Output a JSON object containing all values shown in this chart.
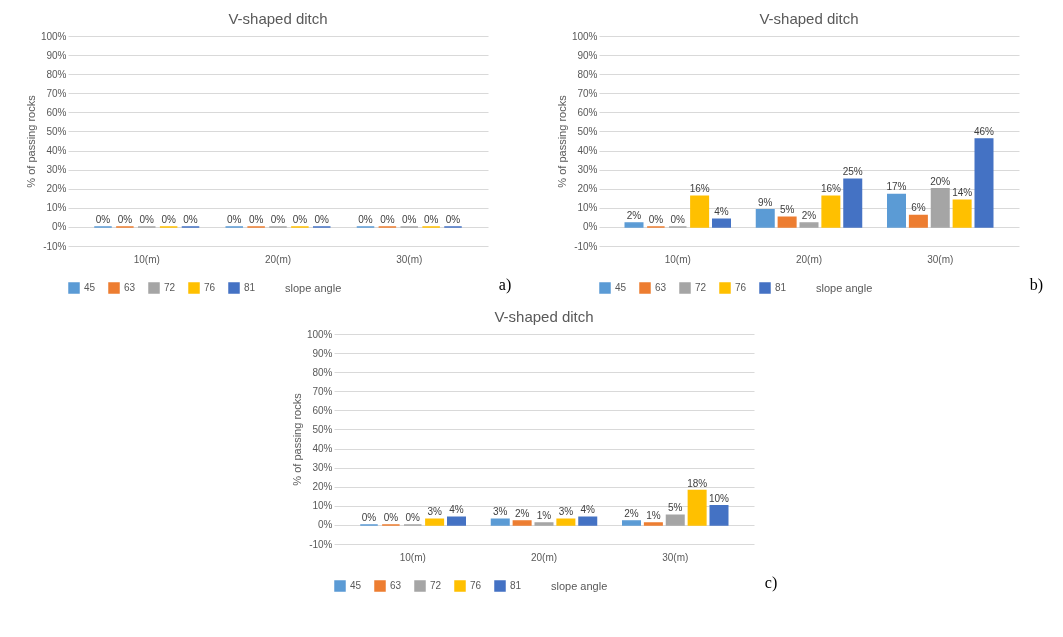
{
  "chart_data": [
    {
      "type": "bar",
      "title": "V-shaped ditch",
      "ylabel": "% of passing rocks",
      "legend_title": "slope angle",
      "legend": "bottom",
      "grid": "y",
      "categories": [
        "10(m)",
        "20(m)",
        "30(m)"
      ],
      "ylim": [
        -10,
        100
      ],
      "yticks": [
        {
          "value": -10,
          "label": "-10%"
        },
        {
          "value": 0,
          "label": "0%"
        },
        {
          "value": 10,
          "label": "10%"
        },
        {
          "value": 20,
          "label": "20%"
        },
        {
          "value": 30,
          "label": "30%"
        },
        {
          "value": 40,
          "label": "40%"
        },
        {
          "value": 50,
          "label": "50%"
        },
        {
          "value": 60,
          "label": "60%"
        },
        {
          "value": 70,
          "label": "70%"
        },
        {
          "value": 80,
          "label": "80%"
        },
        {
          "value": 90,
          "label": "90%"
        },
        {
          "value": 100,
          "label": "100%"
        }
      ],
      "annotations": [
        "a)"
      ],
      "series": [
        {
          "name": "45",
          "color": "#5b9bd5",
          "values": [
            0,
            0,
            0
          ],
          "value_labels": [
            "0%",
            "0%",
            "0%"
          ]
        },
        {
          "name": "63",
          "color": "#ed7d31",
          "values": [
            0,
            0,
            0
          ],
          "value_labels": [
            "0%",
            "0%",
            "0%"
          ]
        },
        {
          "name": "72",
          "color": "#a5a5a5",
          "values": [
            0,
            0,
            0
          ],
          "value_labels": [
            "0%",
            "0%",
            "0%"
          ]
        },
        {
          "name": "76",
          "color": "#ffc000",
          "values": [
            0,
            0,
            0
          ],
          "value_labels": [
            "0%",
            "0%",
            "0%"
          ]
        },
        {
          "name": "81",
          "color": "#4472c4",
          "values": [
            0,
            0,
            0
          ],
          "value_labels": [
            "0%",
            "0%",
            "0%"
          ]
        }
      ]
    },
    {
      "type": "bar",
      "title": "V-shaped ditch",
      "ylabel": "% of passing rocks",
      "legend_title": "slope angle",
      "legend": "bottom",
      "grid": "y",
      "categories": [
        "10(m)",
        "20(m)",
        "30(m)"
      ],
      "ylim": [
        -10,
        100
      ],
      "yticks": [
        {
          "value": -10,
          "label": "-10%"
        },
        {
          "value": 0,
          "label": "0%"
        },
        {
          "value": 10,
          "label": "10%"
        },
        {
          "value": 20,
          "label": "20%"
        },
        {
          "value": 30,
          "label": "30%"
        },
        {
          "value": 40,
          "label": "40%"
        },
        {
          "value": 50,
          "label": "50%"
        },
        {
          "value": 60,
          "label": "60%"
        },
        {
          "value": 70,
          "label": "70%"
        },
        {
          "value": 80,
          "label": "80%"
        },
        {
          "value": 90,
          "label": "90%"
        },
        {
          "value": 100,
          "label": "100%"
        }
      ],
      "annotations": [
        "b)"
      ],
      "series": [
        {
          "name": "45",
          "color": "#5b9bd5",
          "values": [
            2,
            9,
            17
          ],
          "value_labels": [
            "2%",
            "9%",
            "17%"
          ]
        },
        {
          "name": "63",
          "color": "#ed7d31",
          "values": [
            0,
            5,
            6
          ],
          "value_labels": [
            "0%",
            "5%",
            "6%"
          ]
        },
        {
          "name": "72",
          "color": "#a5a5a5",
          "values": [
            0,
            2,
            20
          ],
          "value_labels": [
            "0%",
            "2%",
            "20%"
          ]
        },
        {
          "name": "76",
          "color": "#ffc000",
          "values": [
            16,
            16,
            14
          ],
          "value_labels": [
            "16%",
            "16%",
            "14%"
          ]
        },
        {
          "name": "81",
          "color": "#4472c4",
          "values": [
            4,
            25,
            46
          ],
          "value_labels": [
            "4%",
            "25%",
            "46%"
          ]
        }
      ]
    },
    {
      "type": "bar",
      "title": "V-shaped ditch",
      "ylabel": "% of passing rocks",
      "legend_title": "slope angle",
      "legend": "bottom",
      "grid": "y",
      "categories": [
        "10(m)",
        "20(m)",
        "30(m)"
      ],
      "ylim": [
        -10,
        100
      ],
      "yticks": [
        {
          "value": -10,
          "label": "-10%"
        },
        {
          "value": 0,
          "label": "0%"
        },
        {
          "value": 10,
          "label": "10%"
        },
        {
          "value": 20,
          "label": "20%"
        },
        {
          "value": 30,
          "label": "30%"
        },
        {
          "value": 40,
          "label": "40%"
        },
        {
          "value": 50,
          "label": "50%"
        },
        {
          "value": 60,
          "label": "60%"
        },
        {
          "value": 70,
          "label": "70%"
        },
        {
          "value": 80,
          "label": "80%"
        },
        {
          "value": 90,
          "label": "90%"
        },
        {
          "value": 100,
          "label": "100%"
        }
      ],
      "annotations": [
        "c)"
      ],
      "series": [
        {
          "name": "45",
          "color": "#5b9bd5",
          "values": [
            0,
            3,
            2
          ],
          "value_labels": [
            "0%",
            "3%",
            "2%"
          ]
        },
        {
          "name": "63",
          "color": "#ed7d31",
          "values": [
            0,
            2,
            1
          ],
          "value_labels": [
            "0%",
            "2%",
            "1%"
          ]
        },
        {
          "name": "72",
          "color": "#a5a5a5",
          "values": [
            0,
            1,
            5
          ],
          "value_labels": [
            "0%",
            "1%",
            "5%"
          ]
        },
        {
          "name": "76",
          "color": "#ffc000",
          "values": [
            3,
            3,
            18
          ],
          "value_labels": [
            "3%",
            "3%",
            "18%"
          ]
        },
        {
          "name": "81",
          "color": "#4472c4",
          "values": [
            4,
            4,
            10
          ],
          "value_labels": [
            "4%",
            "4%",
            "10%"
          ]
        }
      ]
    }
  ]
}
